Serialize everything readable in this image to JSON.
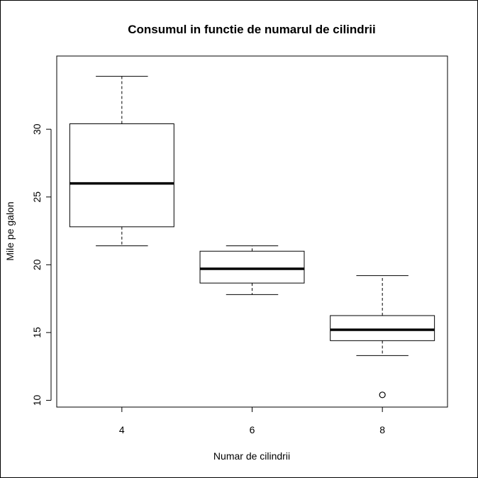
{
  "chart_data": {
    "type": "boxplot",
    "title": "Consumul in functie de numarul de cilindrii",
    "xlabel": "Numar de cilindrii",
    "ylabel": "Mile pe galon",
    "categories": [
      "4",
      "6",
      "8"
    ],
    "ylim": [
      9.5,
      35.4
    ],
    "yticks": [
      10,
      15,
      20,
      25,
      30
    ],
    "grid": false,
    "legend": "none",
    "series": [
      {
        "boxes": [
          {
            "category": "4",
            "min": 21.4,
            "q1": 22.8,
            "median": 26.0,
            "q3": 30.4,
            "max": 33.9,
            "outliers": []
          },
          {
            "category": "6",
            "min": 17.8,
            "q1": 18.65,
            "median": 19.7,
            "q3": 21.0,
            "max": 21.4,
            "outliers": []
          },
          {
            "category": "8",
            "min": 13.3,
            "q1": 14.4,
            "median": 15.2,
            "q3": 16.25,
            "max": 19.2,
            "outliers": [
              10.4
            ]
          }
        ]
      }
    ]
  }
}
